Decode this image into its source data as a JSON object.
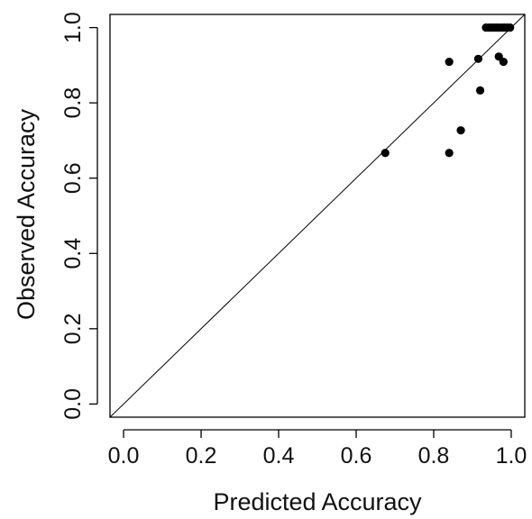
{
  "chart_data": {
    "type": "scatter",
    "title": "",
    "xlabel": "Predicted Accuracy",
    "ylabel": "Observed Accuracy",
    "xlim": [
      -0.035,
      1.035
    ],
    "ylim": [
      -0.035,
      1.035
    ],
    "x_ticks": [
      0.0,
      0.2,
      0.4,
      0.6,
      0.8,
      1.0
    ],
    "y_ticks": [
      0.0,
      0.2,
      0.4,
      0.6,
      0.8,
      1.0
    ],
    "x_tick_labels": [
      "0.0",
      "0.2",
      "0.4",
      "0.6",
      "0.8",
      "1.0"
    ],
    "y_tick_labels": [
      "0.0",
      "0.2",
      "0.4",
      "0.6",
      "0.8",
      "1.0"
    ],
    "reference_line": "y = x",
    "grid": false,
    "box": true,
    "point_color": "#000000",
    "line_color": "#000000",
    "points": [
      {
        "x": 0.675,
        "y": 0.667
      },
      {
        "x": 0.84,
        "y": 0.909
      },
      {
        "x": 0.84,
        "y": 0.667
      },
      {
        "x": 0.87,
        "y": 0.727
      },
      {
        "x": 0.915,
        "y": 0.917
      },
      {
        "x": 0.92,
        "y": 0.833
      },
      {
        "x": 0.968,
        "y": 0.923
      },
      {
        "x": 0.98,
        "y": 0.909
      },
      {
        "x": 0.935,
        "y": 1.0
      },
      {
        "x": 0.943,
        "y": 1.0
      },
      {
        "x": 0.95,
        "y": 1.0
      },
      {
        "x": 0.957,
        "y": 1.0
      },
      {
        "x": 0.963,
        "y": 1.0
      },
      {
        "x": 0.97,
        "y": 1.0
      },
      {
        "x": 0.977,
        "y": 1.0
      },
      {
        "x": 0.983,
        "y": 1.0
      },
      {
        "x": 0.99,
        "y": 1.0
      },
      {
        "x": 0.997,
        "y": 1.0
      }
    ]
  }
}
